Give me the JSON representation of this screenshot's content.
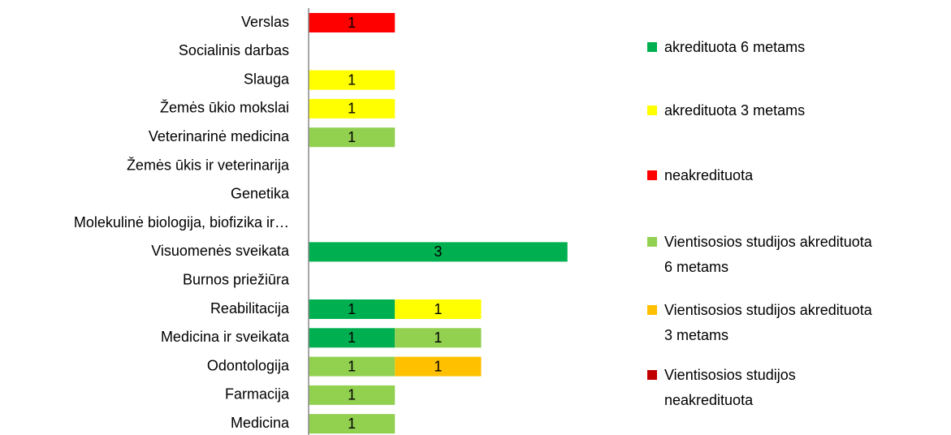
{
  "chart_data": {
    "type": "stacked-bar-horizontal",
    "categories": [
      "Verslas",
      "Socialinis darbas",
      "Slauga",
      "Žemės ūkio mokslai",
      "Veterinarinė medicina",
      "Žemės ūkis ir veterinarija",
      "Genetika",
      "Molekulinė biologija, biofizika ir…",
      "Visuomenės sveikata",
      "Burnos priežiūra",
      "Reabilitacija",
      "Medicina ir sveikata",
      "Odontologija",
      "Farmacija",
      "Medicina"
    ],
    "series": [
      {
        "name": "akredituota 6 metams",
        "color": "#00b050",
        "values": [
          null,
          null,
          null,
          null,
          null,
          null,
          null,
          null,
          3,
          null,
          1,
          1,
          null,
          null,
          null
        ]
      },
      {
        "name": "akredituota 3 metams",
        "color": "#ffff00",
        "values": [
          null,
          null,
          1,
          1,
          null,
          null,
          null,
          null,
          null,
          null,
          1,
          null,
          null,
          null,
          null
        ]
      },
      {
        "name": "neakredituota",
        "color": "#ff0000",
        "values": [
          1,
          null,
          null,
          null,
          null,
          null,
          null,
          null,
          null,
          null,
          null,
          null,
          null,
          null,
          null
        ]
      },
      {
        "name": "Vientisosios studijos akredituota 6 metams",
        "color": "#92d050",
        "values": [
          null,
          null,
          null,
          null,
          1,
          null,
          null,
          null,
          null,
          null,
          null,
          1,
          1,
          1,
          1
        ]
      },
      {
        "name": "Vientisosios studijos akredituota 3 metams",
        "color": "#ffc000",
        "values": [
          null,
          null,
          null,
          null,
          null,
          null,
          null,
          null,
          null,
          null,
          null,
          null,
          1,
          null,
          null
        ]
      },
      {
        "name": "Vientisosios studijos neakredituota",
        "color": "#c00000",
        "values": [
          null,
          null,
          null,
          null,
          null,
          null,
          null,
          null,
          null,
          null,
          null,
          null,
          null,
          null,
          null
        ]
      }
    ],
    "xlim": [
      0,
      4
    ],
    "legend": "right"
  }
}
